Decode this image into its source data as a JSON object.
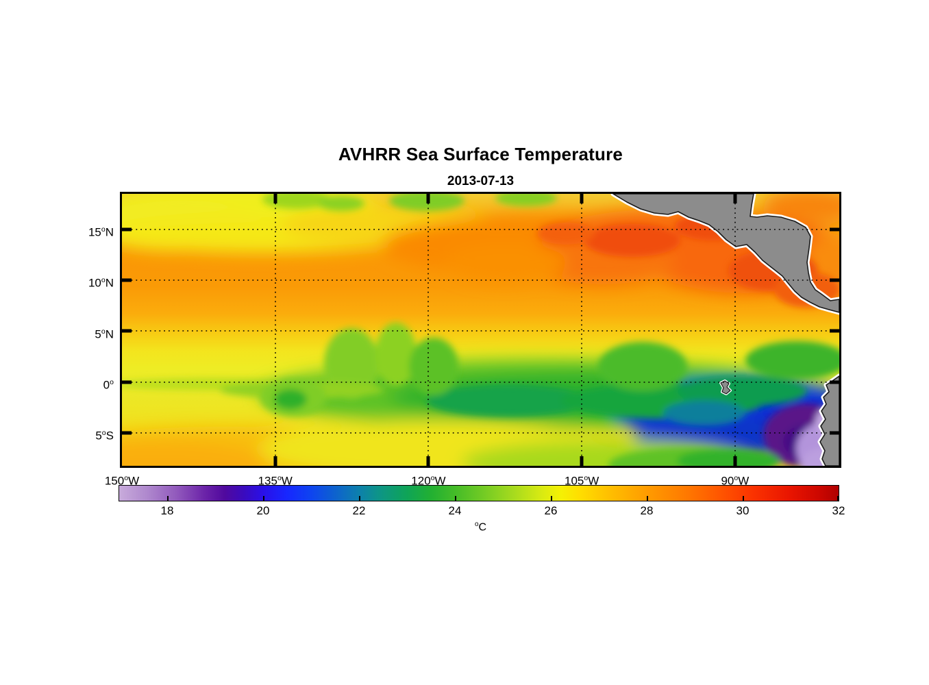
{
  "figure": {
    "title": "AVHRR Sea Surface Temperature",
    "subtitle": "2013-07-13"
  },
  "map": {
    "extent": {
      "lon_min": -150,
      "lon_max": -79.8,
      "lat_min": -8.2,
      "lat_max": 18.5
    },
    "xticks": [
      {
        "num": "150",
        "deg": "o",
        "dir": "W",
        "lon": -150
      },
      {
        "num": "135",
        "deg": "o",
        "dir": "W",
        "lon": -135
      },
      {
        "num": "120",
        "deg": "o",
        "dir": "W",
        "lon": -120
      },
      {
        "num": "105",
        "deg": "o",
        "dir": "W",
        "lon": -105
      },
      {
        "num": "90",
        "deg": "o",
        "dir": "W",
        "lon": -90
      }
    ],
    "yticks": [
      {
        "num": "15",
        "deg": "o",
        "dir": "N",
        "lat": 15
      },
      {
        "num": "10",
        "deg": "o",
        "dir": "N",
        "lat": 10
      },
      {
        "num": "5",
        "deg": "o",
        "dir": "N",
        "lat": 5
      },
      {
        "num": "0",
        "deg": "o",
        "dir": "",
        "lat": 0
      },
      {
        "num": "5",
        "deg": "o",
        "dir": "S",
        "lat": -5
      }
    ],
    "land_color": "#8c8c8c",
    "coast_halo_color": "#ffffff",
    "grid_style": "dotted-black"
  },
  "colorbar": {
    "min": 17,
    "max": 32,
    "unit": {
      "deg": "o",
      "letter": "C"
    },
    "ticks": [
      18,
      20,
      22,
      24,
      26,
      28,
      30,
      32
    ],
    "stops": [
      {
        "t": 17.0,
        "c": "#C8ABDB"
      },
      {
        "t": 17.6,
        "c": "#AE87CD"
      },
      {
        "t": 18.2,
        "c": "#9159BC"
      },
      {
        "t": 18.8,
        "c": "#6A22A8"
      },
      {
        "t": 19.2,
        "c": "#50099E"
      },
      {
        "t": 19.6,
        "c": "#3A0BBE"
      },
      {
        "t": 20.0,
        "c": "#2A10E8"
      },
      {
        "t": 20.5,
        "c": "#1727FF"
      },
      {
        "t": 21.0,
        "c": "#0E44F0"
      },
      {
        "t": 21.5,
        "c": "#0D62CE"
      },
      {
        "t": 22.0,
        "c": "#0D80AC"
      },
      {
        "t": 22.4,
        "c": "#0D9488"
      },
      {
        "t": 23.0,
        "c": "#0FA457"
      },
      {
        "t": 23.5,
        "c": "#22B032"
      },
      {
        "t": 24.0,
        "c": "#44BC28"
      },
      {
        "t": 24.6,
        "c": "#73CB24"
      },
      {
        "t": 25.2,
        "c": "#A5DA1E"
      },
      {
        "t": 25.8,
        "c": "#D8EA12"
      },
      {
        "t": 26.2,
        "c": "#F4F104"
      },
      {
        "t": 26.6,
        "c": "#FFDE00"
      },
      {
        "t": 27.2,
        "c": "#FFC000"
      },
      {
        "t": 28.0,
        "c": "#FF9C00"
      },
      {
        "t": 28.8,
        "c": "#FF7A00"
      },
      {
        "t": 29.5,
        "c": "#FF5700"
      },
      {
        "t": 30.2,
        "c": "#FB3300"
      },
      {
        "t": 31.0,
        "c": "#E81400"
      },
      {
        "t": 31.6,
        "c": "#CC0700"
      },
      {
        "t": 32.0,
        "c": "#AF0000"
      }
    ]
  },
  "chart_data": {
    "type": "heatmap",
    "title": "AVHRR Sea Surface Temperature",
    "subtitle_date": "2013-07-13",
    "x_tick_labels": [
      "150°W",
      "135°W",
      "120°W",
      "105°W",
      "90°W"
    ],
    "y_tick_labels": [
      "15°N",
      "10°N",
      "5°N",
      "0°",
      "5°S"
    ],
    "lon_range_deg": [
      -150,
      -79.8
    ],
    "lat_range_deg": [
      -8.2,
      18.5
    ],
    "grid": "dotted, at each labeled tick",
    "legend_position": "horizontal colorbar below map",
    "colorbar": {
      "unit": "°C",
      "range": [
        17,
        32
      ],
      "tick_values": [
        18,
        20,
        22,
        24,
        26,
        28,
        30,
        32
      ]
    },
    "land_masses": [
      "Mexico (Pacific coast, top right)",
      "Central America isthmus (Guatemala to Panama)",
      "Caribbean Sea gap at top-right corner",
      "South America / Ecuador-Peru coast (bottom-right edge)",
      "Galápagos Islands (~0.5°S, 90.5°W)"
    ],
    "sst_features": [
      {
        "region": "Warm band 8–16°N across basin",
        "approx_sst_c": 28.5
      },
      {
        "region": "Warmest patches off southern Mexico / Guatemala coast, 10–15°N, 95–110°W",
        "approx_sst_c": 30
      },
      {
        "region": "Northwest strip north of 15°N west of 120°W (yellow with green patches at top edge)",
        "approx_sst_c": 25.5
      },
      {
        "region": "Yellow band near 3–6°N",
        "approx_sst_c": 26
      },
      {
        "region": "Equatorial cold tongue 0–3°S, 135–100°W with tropical-instability-wave cusps",
        "approx_sst_c": 23.5
      },
      {
        "region": "Cold upwelled water east of ~97°W around/below equator",
        "approx_sst_c": 20.5
      },
      {
        "region": "Coastal upwelling off Ecuador/Peru, southeast corner",
        "approx_sst_c": 17.5
      },
      {
        "region": "Subtropical water south of 4°S west of 120°W",
        "approx_sst_c": 26.5
      },
      {
        "region": "Caribbean water northeast of Honduras/Nicaragua",
        "approx_sst_c": 28.5
      }
    ]
  }
}
